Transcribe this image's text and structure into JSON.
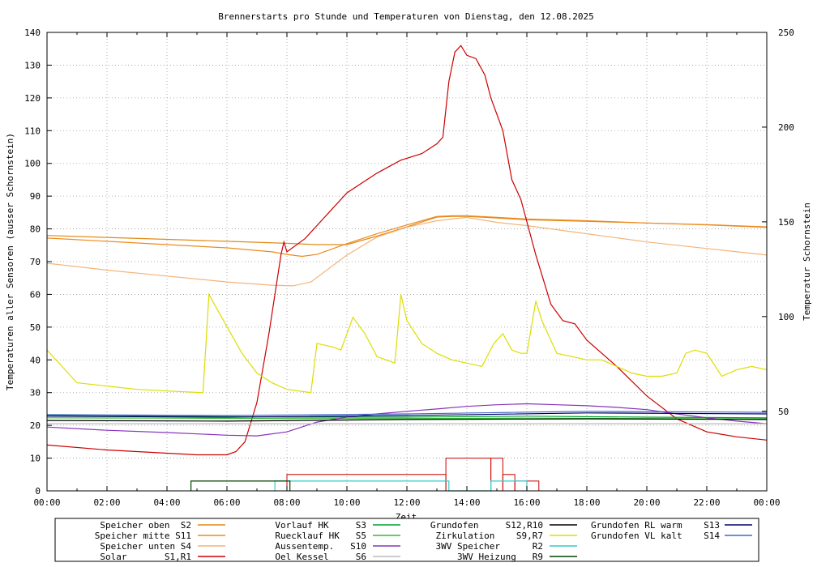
{
  "chart_data": {
    "type": "line",
    "title": "Brennerstarts pro Stunde und Temperaturen von Dienstag, den 12.08.2025",
    "xlabel": "Zeit",
    "ylabel": "Temperaturen aller Sensoren (ausser Schornstein)",
    "y2label": "Temperatur Schornstein",
    "y2label_color": "#ff33ff",
    "xlim": [
      0,
      24
    ],
    "ylim": [
      0,
      140
    ],
    "y2lim": [
      8,
      250
    ],
    "grid": true,
    "x_ticks": [
      "00:00",
      "02:00",
      "04:00",
      "06:00",
      "08:00",
      "10:00",
      "12:00",
      "14:00",
      "16:00",
      "18:00",
      "20:00",
      "22:00",
      "00:00"
    ],
    "y_ticks": [
      "0",
      "10",
      "20",
      "30",
      "40",
      "50",
      "60",
      "70",
      "80",
      "90",
      "100",
      "110",
      "120",
      "130",
      "140"
    ],
    "y2_ticks": [
      "50",
      "100",
      "150",
      "200",
      "250"
    ],
    "legend_position": "bottom",
    "series": [
      {
        "name": "Speicher oben  S2",
        "color": "#e08a14",
        "x": [
          0,
          2,
          4,
          6,
          8,
          9,
          10,
          11,
          12,
          13,
          13.5,
          14,
          15,
          16,
          18,
          20,
          22,
          24
        ],
        "y": [
          78,
          77.4,
          76.8,
          76.2,
          75.6,
          75.2,
          75.2,
          77.8,
          80.6,
          83.6,
          83.8,
          83.8,
          83.3,
          82.8,
          82.3,
          81.8,
          81.3,
          80.6
        ]
      },
      {
        "name": "Speicher mitte S11",
        "color": "#ee8a1e",
        "x": [
          0,
          2,
          4,
          6,
          7.5,
          8,
          8.5,
          9,
          10,
          11,
          12,
          13,
          13.5,
          14,
          15,
          16,
          18,
          20,
          22,
          24
        ],
        "y": [
          77.2,
          76.2,
          75.2,
          74.2,
          73,
          72.2,
          71.6,
          72.2,
          75.5,
          78.5,
          81.2,
          83.8,
          84,
          84,
          83.5,
          83,
          82.5,
          81.8,
          81.2,
          80.5
        ]
      },
      {
        "name": "Speicher unten S4",
        "color": "#f4b47a",
        "x": [
          0,
          2,
          4,
          6,
          7.5,
          8.2,
          8.8,
          10,
          11,
          12,
          13,
          14,
          15,
          16,
          18,
          20,
          22,
          24
        ],
        "y": [
          69.5,
          67.4,
          65.6,
          63.8,
          62.8,
          62.6,
          63.8,
          72,
          77.5,
          80.5,
          82.5,
          83.5,
          82,
          81,
          78.5,
          76,
          74,
          72
        ]
      },
      {
        "name": "Solar       S1,R1",
        "color": "#cc0000",
        "x": [
          0,
          2,
          4,
          5,
          6,
          6.3,
          6.6,
          7,
          7.4,
          7.8,
          7.9,
          8,
          8.3,
          8.6,
          9,
          9.5,
          10,
          11,
          11.8,
          12.5,
          13,
          13.2,
          13.4,
          13.6,
          13.8,
          14,
          14.3,
          14.6,
          14.8,
          15.2,
          15.5,
          15.8,
          16.3,
          16.8,
          17.2,
          17.6,
          18,
          19,
          20,
          21,
          22,
          23,
          24
        ],
        "y": [
          14,
          12.5,
          11.5,
          11,
          11,
          12,
          15,
          27,
          48,
          72,
          76,
          73,
          75,
          77,
          81,
          86,
          91,
          97,
          101,
          103,
          106,
          108,
          125,
          134,
          136,
          133,
          132,
          127,
          120,
          110,
          95,
          89,
          72,
          57,
          52,
          51,
          46,
          38,
          29,
          22,
          18,
          16.5,
          15.5
        ]
      },
      {
        "name": "Vorlauf HK     S3",
        "color": "#00a030",
        "x": [
          0,
          4,
          8,
          12,
          16,
          20,
          24
        ],
        "y": [
          23,
          22.8,
          22.5,
          22.5,
          22.8,
          22.5,
          22.3
        ]
      },
      {
        "name": "Ruecklauf HK   S5",
        "color": "#33bb33",
        "x": [
          0,
          4,
          8,
          12,
          16,
          20,
          24
        ],
        "y": [
          22.3,
          22.2,
          22.1,
          22.1,
          22.2,
          22.1,
          22
        ]
      },
      {
        "name": "Aussentemp.   S10",
        "color": "#8833bb",
        "x": [
          0,
          2,
          4,
          6,
          7,
          8,
          9,
          10,
          11,
          12,
          13,
          14,
          15,
          16,
          17,
          18,
          19,
          20,
          21,
          22,
          23,
          24
        ],
        "y": [
          19.5,
          18.5,
          17.8,
          17,
          16.8,
          18,
          21,
          22.5,
          23.5,
          24.3,
          25,
          25.8,
          26.3,
          26.6,
          26.3,
          26,
          25.5,
          24.8,
          23.5,
          22.3,
          21.3,
          20.5
        ]
      },
      {
        "name": "Oel Kessel     S6",
        "color": "#bbbbbb",
        "x": [
          0,
          24
        ],
        "y": [
          20.5,
          20.5
        ]
      },
      {
        "name": "Grundofen     S12,R10",
        "color": "#000000",
        "x": [
          0,
          6,
          12,
          18,
          24
        ],
        "y": [
          21.5,
          21.3,
          21.8,
          22,
          21.8
        ]
      },
      {
        "name": "Zirkulation    S9,R7",
        "color": "#dddd00",
        "x": [
          0,
          0.5,
          1,
          2,
          3,
          4,
          5.2,
          5.4,
          5.7,
          6.5,
          7,
          7.5,
          8,
          8.8,
          9,
          9.5,
          9.8,
          10.2,
          10.6,
          11,
          11.6,
          11.8,
          12,
          12.5,
          13,
          13.5,
          14,
          14.5,
          14.9,
          15.2,
          15.5,
          15.8,
          16,
          16.3,
          16.5,
          17,
          17.5,
          18,
          18.5,
          19,
          19.5,
          20,
          20.5,
          21,
          21.3,
          21.6,
          22,
          22.5,
          23,
          23.5,
          24
        ],
        "y": [
          43,
          38,
          33,
          32,
          31,
          30.5,
          30,
          60,
          55,
          42,
          36,
          33,
          31,
          30,
          45,
          44,
          43,
          53,
          48,
          41,
          39,
          60,
          52,
          45,
          42,
          40,
          39,
          38,
          45,
          48,
          43,
          42,
          42,
          58,
          52,
          42,
          41,
          40,
          40,
          38,
          36,
          35,
          35,
          36,
          42,
          43,
          42,
          35,
          37,
          38,
          37
        ]
      },
      {
        "name": "3WV Speicher      R2",
        "color": "#33cccc",
        "x": [
          7.6,
          7.6,
          13.4,
          13.4,
          14.8,
          14.8,
          16,
          16
        ],
        "y": [
          0,
          3,
          3,
          0,
          0,
          3,
          3,
          0
        ]
      },
      {
        "name": "3WV Heizung   R9",
        "color": "#004400",
        "x": [
          4.8,
          4.8,
          8.1,
          8.1
        ],
        "y": [
          0,
          3,
          3,
          0
        ]
      },
      {
        "name": "Grundofen RL warm    S13",
        "color": "#000066",
        "x": [
          0,
          6,
          12,
          18,
          24
        ],
        "y": [
          22.8,
          22.5,
          23,
          23.8,
          23.5
        ]
      },
      {
        "name": "Grundofen VL kalt    S14",
        "color": "#4466cc",
        "x": [
          0,
          6,
          12,
          18,
          24
        ],
        "y": [
          23.3,
          23,
          23.5,
          24.3,
          24
        ]
      }
    ],
    "bars": {
      "name": "Brennerstarts",
      "color": "#cc0000",
      "x": [
        8,
        13.3,
        14.8,
        15.2,
        15.6,
        16
      ],
      "y": [
        5,
        10,
        10,
        5,
        3,
        3
      ]
    }
  },
  "legend": {
    "col1": [
      {
        "label": "Speicher oben  S2",
        "color": "#e08a14"
      },
      {
        "label": "Speicher mitte S11",
        "color": "#ee8a1e"
      },
      {
        "label": "Speicher unten S4",
        "color": "#f4b47a"
      },
      {
        "label": "Solar       S1,R1",
        "color": "#cc0000"
      }
    ],
    "col2": [
      {
        "label": "Vorlauf HK     S3",
        "color": "#00a030"
      },
      {
        "label": "Ruecklauf HK   S5",
        "color": "#33bb33"
      },
      {
        "label": "Aussentemp.   S10",
        "color": "#8833bb"
      },
      {
        "label": "Oel Kessel     S6",
        "color": "#bbbbbb"
      }
    ],
    "col3": [
      {
        "label": "Grundofen     S12,R10",
        "color": "#000000"
      },
      {
        "label": "Zirkulation    S9,R7",
        "color": "#dddd00"
      },
      {
        "label": "3WV Speicher      R2",
        "color": "#33cccc"
      },
      {
        "label": "3WV Heizung   R9",
        "color": "#004400"
      }
    ],
    "col4": [
      {
        "label": "Grundofen RL warm    S13",
        "color": "#000066"
      },
      {
        "label": "Grundofen VL kalt    S14",
        "color": "#4466cc"
      }
    ]
  }
}
